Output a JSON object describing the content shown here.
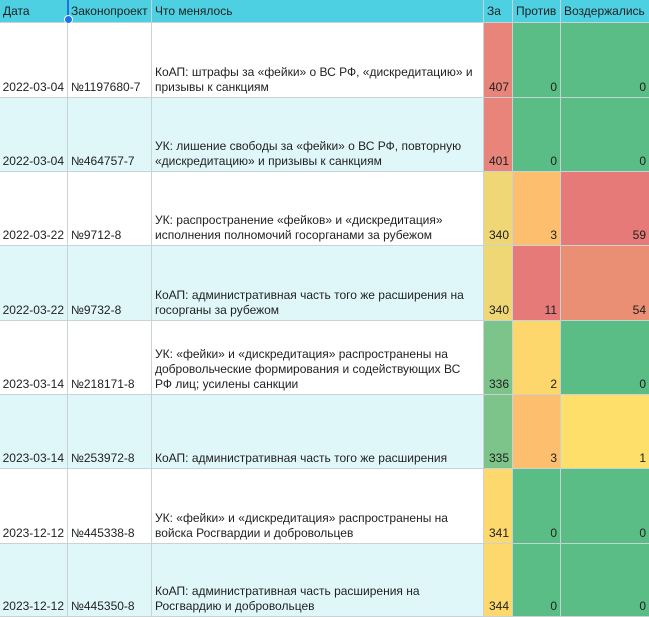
{
  "headers": {
    "date": "Дата",
    "bill": "Законопроект",
    "what": "Что менялось",
    "za": "За",
    "protiv": "Против",
    "vozd": "Воздержались"
  },
  "rows": [
    {
      "date": "2022-03-04",
      "bill": "№1197680-7",
      "what": "КоАП: штрафы за «фейки» о ВС РФ, «дискредитацию» и призывы к санкциям",
      "za": "407",
      "protiv": "0",
      "vozd": "0"
    },
    {
      "date": "2022-03-04",
      "bill": "№464757-7",
      "what": "УК: лишение свободы за «фейки» о ВС РФ, повторную «дискредитацию» и призывы к санкциям",
      "za": "401",
      "protiv": "0",
      "vozd": "0"
    },
    {
      "date": "2022-03-22",
      "bill": "№9712-8",
      "what": "УК: распространение «фейков» и «дискредитация» исполнения полномочий госорганами за рубежом",
      "za": "340",
      "protiv": "3",
      "vozd": "59"
    },
    {
      "date": "2022-03-22",
      "bill": "№9732-8",
      "what": "КоАП: административная часть того же расширения на госорганы за рубежом",
      "za": "340",
      "protiv": "11",
      "vozd": "54"
    },
    {
      "date": "2023-03-14",
      "bill": "№218171-8",
      "what": "УК: «фейки» и «дискредитация» распространены на добровольческие формирования и содействующих ВС РФ лиц; усилены санкции",
      "za": "336",
      "protiv": "2",
      "vozd": "0"
    },
    {
      "date": "2023-03-14",
      "bill": "№253972-8",
      "what": "КоАП: административная часть того же расширения",
      "za": "335",
      "protiv": "3",
      "vozd": "1"
    },
    {
      "date": "2023-12-12",
      "bill": "№445338-8",
      "what": "УК: «фейки» и «дискредитация» распространены на войска Росгвардии и добровольцев",
      "za": "341",
      "protiv": "0",
      "vozd": "0"
    },
    {
      "date": "2023-12-12",
      "bill": "№445350-8",
      "what": "КоАП: административная часть расширения на Росгвардию и добровольцев",
      "za": "344",
      "protiv": "0",
      "vozd": "0"
    }
  ],
  "colors": {
    "za": [
      "#e8847a",
      "#e8847a",
      "#eed774",
      "#eed774",
      "#7cc48a",
      "#7cc48a",
      "#fdd86c",
      "#fdd86c"
    ],
    "protiv": [
      "#5bbd86",
      "#5bbd86",
      "#fdbf6e",
      "#e57a78",
      "#fdd66c",
      "#fdbf6e",
      "#5bbd86",
      "#5bbd86"
    ],
    "vozd": [
      "#5bbd86",
      "#5bbd86",
      "#e57a78",
      "#ea8f73",
      "#5bbd86",
      "#fddf6a",
      "#5bbd86",
      "#5bbd86"
    ],
    "header": "#4dd0e1",
    "band": "#e0f7fa"
  }
}
